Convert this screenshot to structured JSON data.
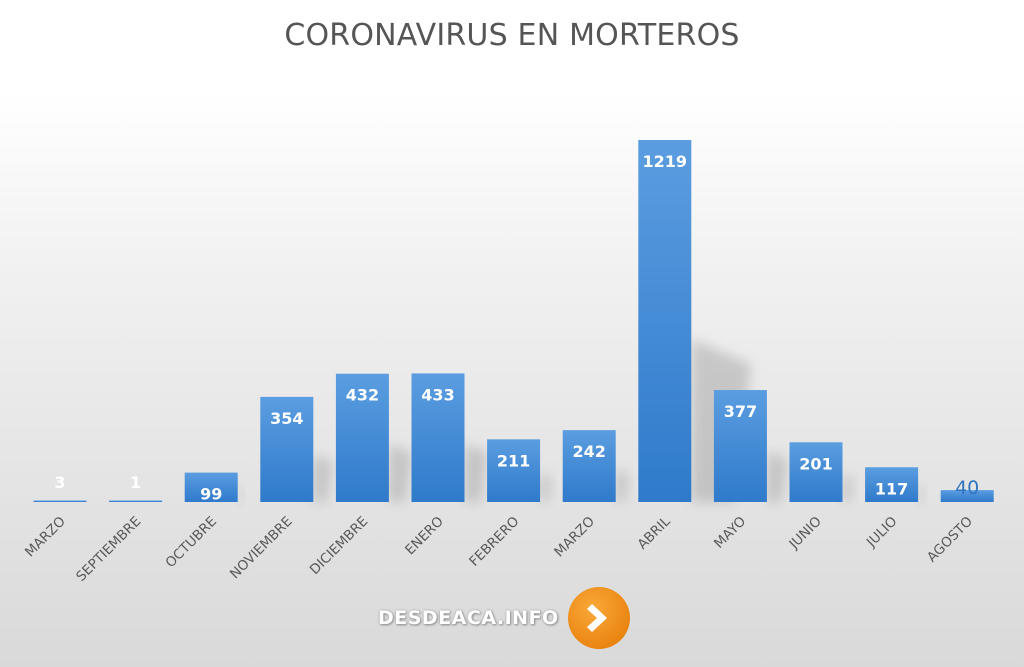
{
  "chart_data": {
    "type": "bar",
    "title": "CORONAVIRUS EN MORTEROS",
    "categories": [
      "MARZO",
      "SEPTIEMBRE",
      "OCTUBRE",
      "NOVIEMBRE",
      "DICIEMBRE",
      "ENERO",
      "FEBRERO",
      "MARZO",
      "ABRIL",
      "MAYO",
      "JUNIO",
      "JULIO",
      "AGOSTO"
    ],
    "values": [
      3,
      1,
      99,
      354,
      432,
      433,
      211,
      242,
      1219,
      377,
      201,
      117,
      40
    ],
    "ylim": [
      0,
      1219
    ],
    "grid": false,
    "legend": "none",
    "bar_color": "#3a86cf",
    "label_color": "#ffffff",
    "last_label_color": "#2f75bf"
  },
  "watermark": {
    "text": "DESDEACA.INFO",
    "badge_color": "#f39019",
    "icon": "chevron-right-icon"
  }
}
